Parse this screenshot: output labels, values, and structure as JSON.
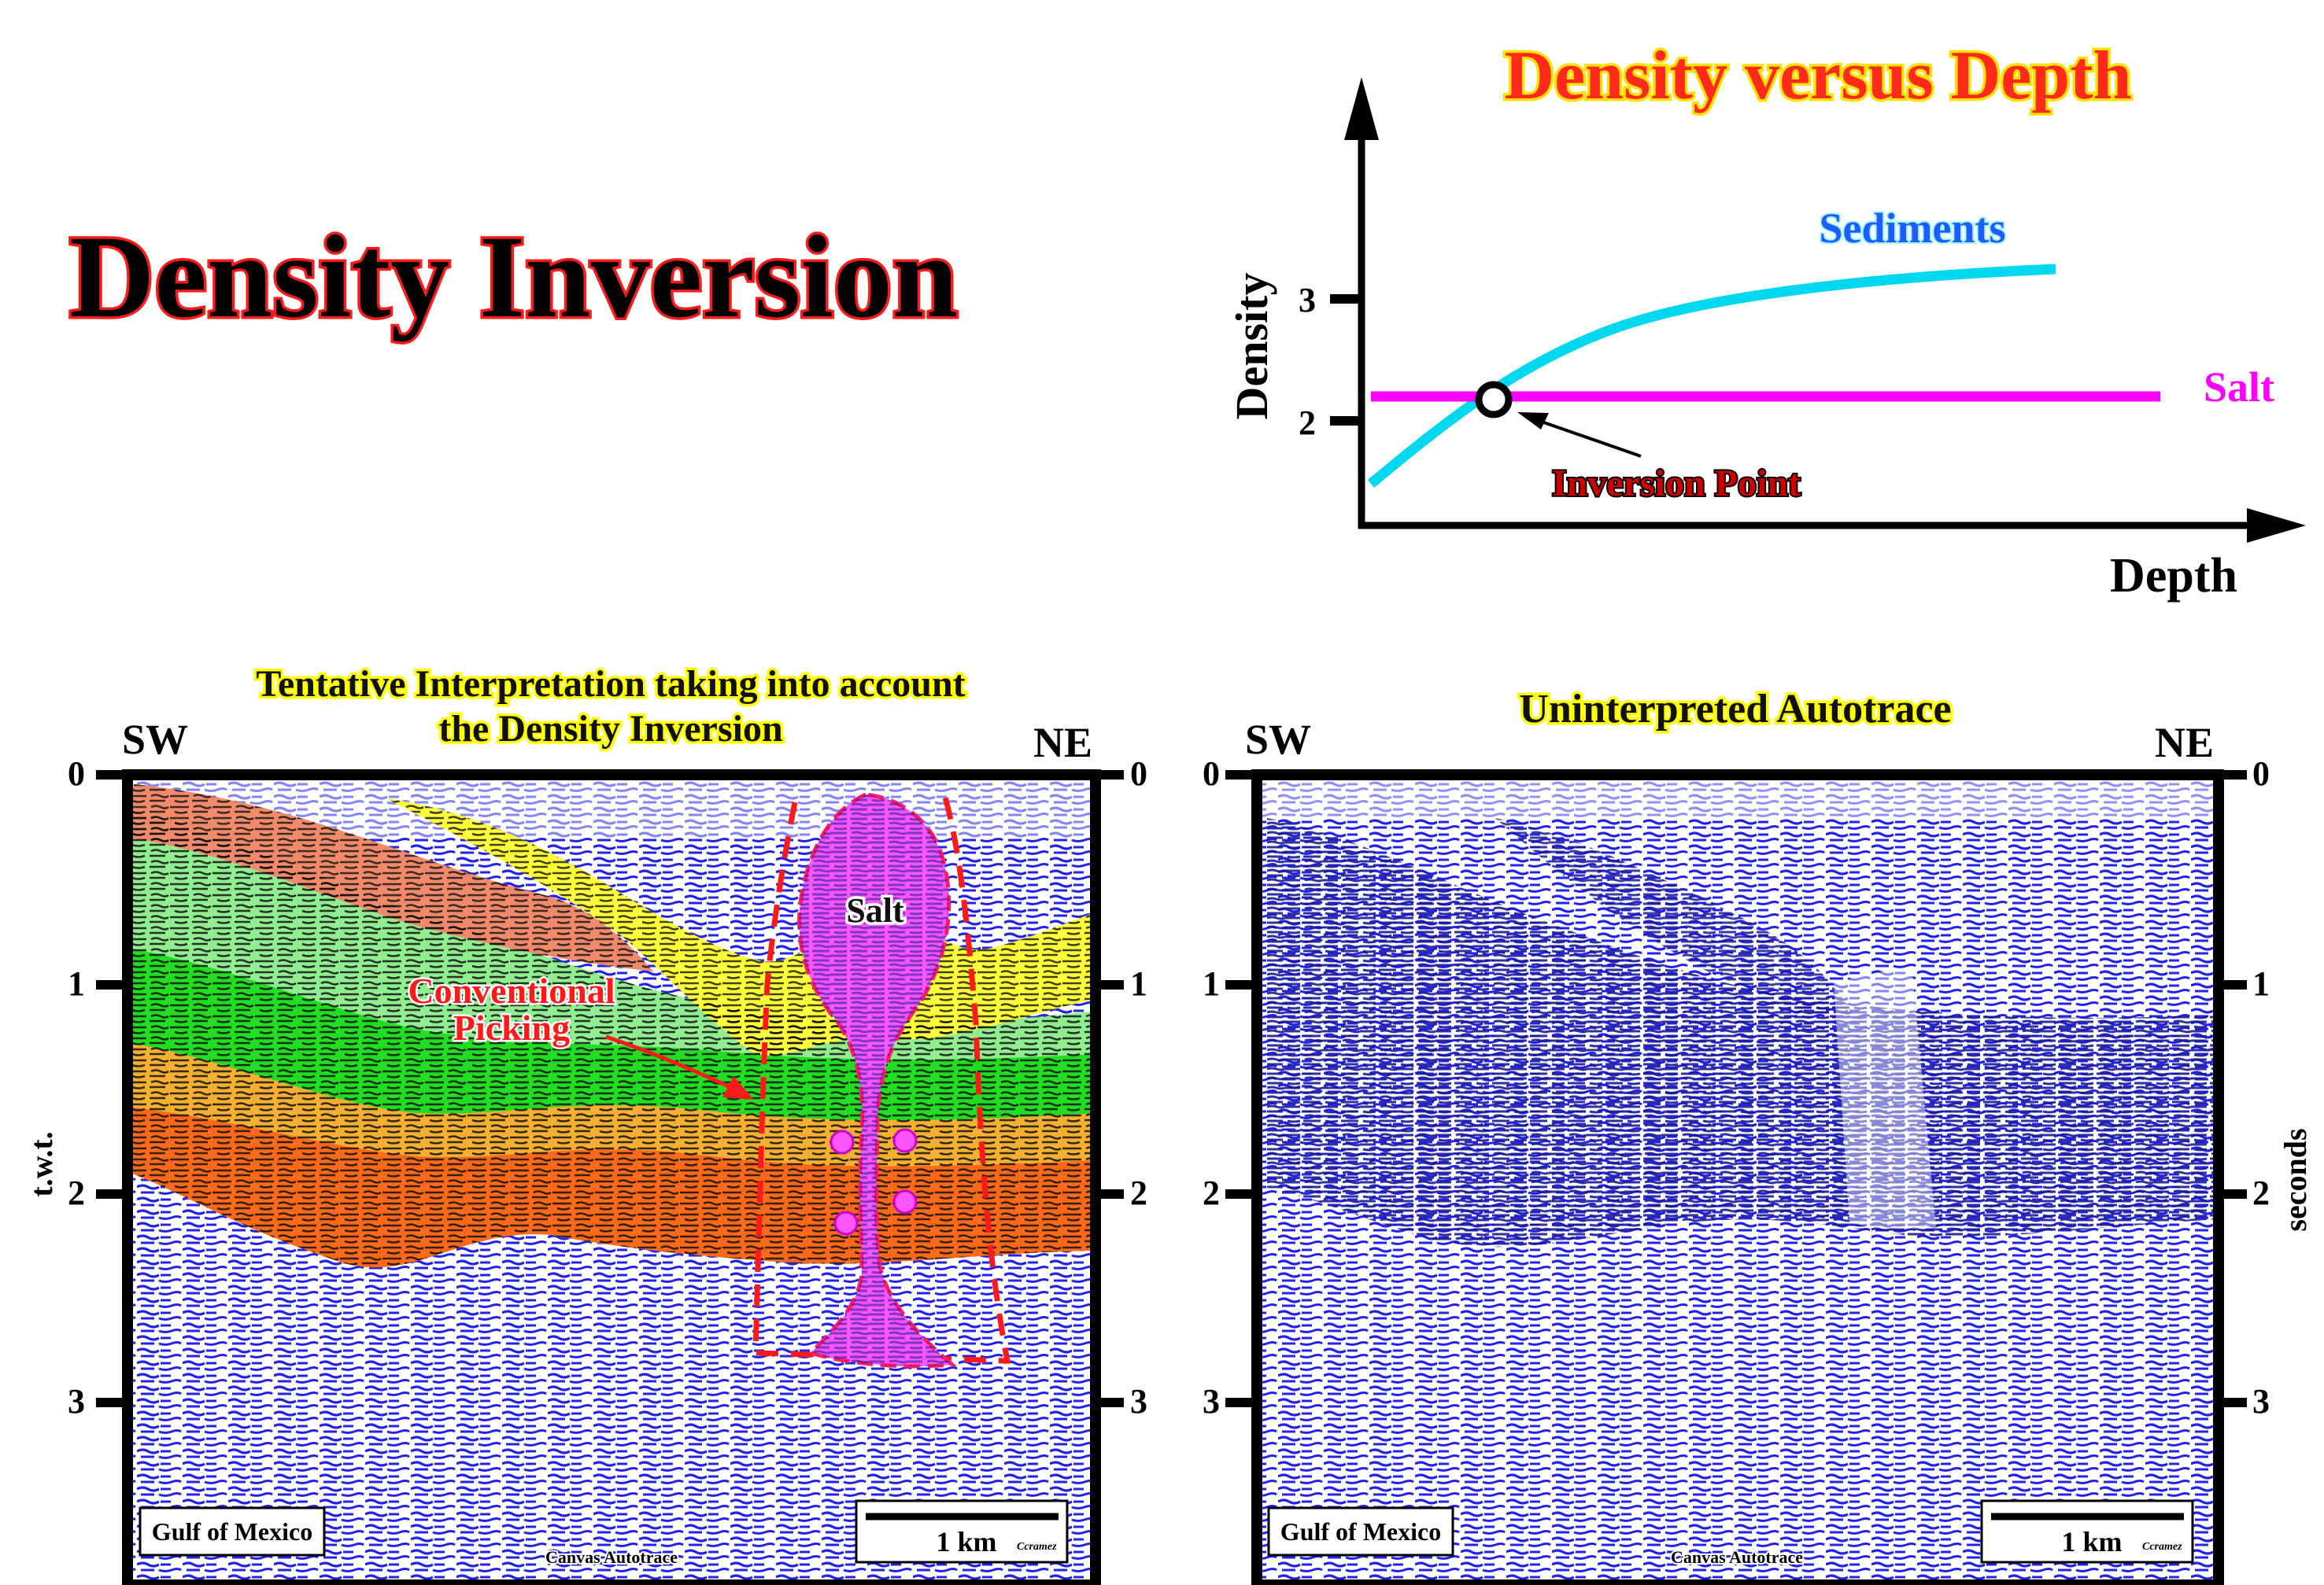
{
  "main_title": "Density Inversion",
  "graph": {
    "title": "Density versus Depth",
    "y_axis_label": "Density",
    "x_axis_label": "Depth",
    "y_ticks": [
      "3",
      "2"
    ],
    "sediments_label": "Sediments",
    "salt_label": "Salt",
    "inversion_label": "Inversion Point",
    "colors": {
      "sediments": "#00d8f0",
      "salt": "#ff00ff",
      "inversion": "#cc0000",
      "title": "#ff2a1a"
    }
  },
  "left_panel": {
    "title_line1": "Tentative Interpretation taking into account",
    "title_line2": "the Density Inversion",
    "left_dir": "SW",
    "right_dir": "NE",
    "axis_ticks": [
      "0",
      "1",
      "2",
      "3"
    ],
    "left_axis_label": "t.w.t.",
    "salt_label": "Salt",
    "picking_line1": "Conventional",
    "picking_line2": "Picking",
    "location": "Gulf of Mexico",
    "scale": "1 km",
    "credit": "Ccramez",
    "footer": "Canvas Autotrace",
    "colors": {
      "salt": "#ff55ff",
      "yellow": "#ffff3a",
      "salmon": "#f08a6a",
      "light_green": "#90ee90",
      "green": "#22dd22",
      "orange": "#f5b032",
      "dark_orange": "#ff6a1a"
    }
  },
  "right_panel": {
    "title": "Uninterpreted Autotrace",
    "left_dir": "SW",
    "right_dir": "NE",
    "axis_ticks": [
      "0",
      "1",
      "2",
      "3"
    ],
    "right_axis_label": "seconds",
    "location": "Gulf of Mexico",
    "scale": "1 km",
    "credit": "Ccramez",
    "footer": "Canvas Autotrace"
  }
}
